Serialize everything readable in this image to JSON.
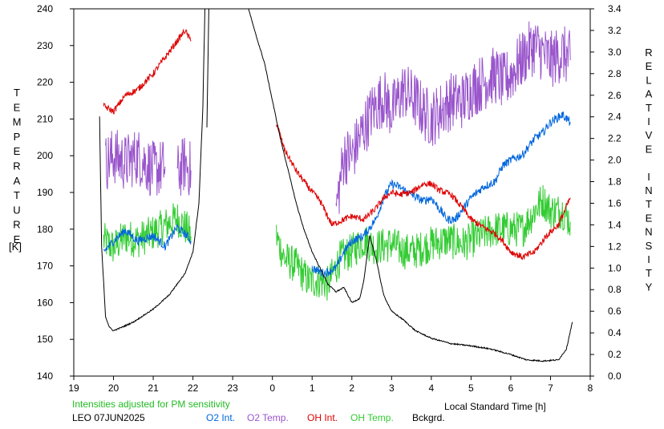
{
  "chart_data": {
    "type": "line",
    "left_axis_label": "TEMPERATURE",
    "left_axis_unit": "[K]",
    "right_axis_label": "RELATIVE INTENSITY",
    "xlabel": "Local Standard Time [h]",
    "xlim": [
      19,
      32
    ],
    "x_tick_values": [
      19,
      20,
      21,
      22,
      23,
      24,
      25,
      26,
      27,
      28,
      29,
      30,
      31,
      32
    ],
    "x_tick_labels": [
      "19",
      "20",
      "21",
      "22",
      "23",
      "0",
      "1",
      "2",
      "3",
      "4",
      "5",
      "6",
      "7",
      "8"
    ],
    "ylim_left": [
      140,
      240
    ],
    "left_ticks": [
      "140",
      "150",
      "160",
      "170",
      "180",
      "190",
      "200",
      "210",
      "220",
      "230",
      "240"
    ],
    "ylim_right": [
      0.0,
      3.4
    ],
    "right_ticks": [
      "0.0",
      "0.2",
      "0.4",
      "0.6",
      "0.8",
      "1.0",
      "1.2",
      "1.4",
      "1.6",
      "1.8",
      "2.0",
      "2.2",
      "2.4",
      "2.6",
      "2.8",
      "3.0",
      "3.2",
      "3.4"
    ],
    "note": "Intensities adjusted for PM sensitivity",
    "station": "LEO 07JUN2025",
    "series": [
      {
        "name": "O2 Int.",
        "axis": "right",
        "color": "#0066dd",
        "noise": 0.04,
        "segments": [
          [
            [
              19.75,
              1.15
            ],
            [
              20.0,
              1.25
            ],
            [
              20.3,
              1.35
            ],
            [
              20.6,
              1.25
            ],
            [
              21.0,
              1.3
            ],
            [
              21.3,
              1.2
            ],
            [
              21.6,
              1.38
            ],
            [
              21.85,
              1.3
            ],
            [
              21.95,
              1.25
            ]
          ],
          [
            [
              25.0,
              1.0
            ],
            [
              25.3,
              0.95
            ],
            [
              25.6,
              1.0
            ],
            [
              25.8,
              1.15
            ],
            [
              26.0,
              1.25
            ],
            [
              26.3,
              1.3
            ],
            [
              26.6,
              1.45
            ],
            [
              26.8,
              1.65
            ],
            [
              27.0,
              1.78
            ],
            [
              27.2,
              1.75
            ],
            [
              27.5,
              1.68
            ],
            [
              27.8,
              1.62
            ],
            [
              28.0,
              1.65
            ],
            [
              28.2,
              1.55
            ],
            [
              28.4,
              1.45
            ],
            [
              28.6,
              1.45
            ],
            [
              28.8,
              1.55
            ],
            [
              29.0,
              1.65
            ],
            [
              29.3,
              1.75
            ],
            [
              29.6,
              1.8
            ],
            [
              29.8,
              1.95
            ],
            [
              30.0,
              2.0
            ],
            [
              30.3,
              2.05
            ],
            [
              30.6,
              2.2
            ],
            [
              30.8,
              2.25
            ],
            [
              31.0,
              2.35
            ],
            [
              31.3,
              2.42
            ],
            [
              31.5,
              2.35
            ]
          ]
        ]
      },
      {
        "name": "O2 Temp.",
        "axis": "left",
        "color": "#9955cc",
        "noise": 8,
        "segments": [
          [
            [
              19.8,
              198
            ],
            [
              20.0,
              200
            ],
            [
              20.3,
              198
            ],
            [
              20.6,
              200
            ],
            [
              21.0,
              196
            ],
            [
              21.3,
              197
            ]
          ],
          [
            [
              21.6,
              195
            ],
            [
              21.8,
              198
            ],
            [
              21.95,
              196
            ]
          ],
          [
            [
              25.6,
              185
            ],
            [
              25.8,
              200
            ],
            [
              26.0,
              200
            ],
            [
              26.2,
              205
            ],
            [
              26.5,
              212
            ],
            [
              26.8,
              216
            ],
            [
              27.0,
              212
            ],
            [
              27.3,
              218
            ],
            [
              27.6,
              215
            ],
            [
              27.8,
              212
            ],
            [
              28.0,
              210
            ],
            [
              28.2,
              212
            ],
            [
              28.5,
              215
            ],
            [
              28.8,
              215
            ],
            [
              29.0,
              218
            ],
            [
              29.3,
              220
            ],
            [
              29.6,
              222
            ],
            [
              29.8,
              220
            ],
            [
              30.0,
              222
            ],
            [
              30.2,
              225
            ],
            [
              30.4,
              228
            ],
            [
              30.6,
              230
            ],
            [
              30.8,
              228
            ],
            [
              31.0,
              226
            ],
            [
              31.3,
              228
            ],
            [
              31.5,
              226
            ]
          ]
        ]
      },
      {
        "name": "OH Int.",
        "axis": "right",
        "color": "#dd0000",
        "noise": 0.03,
        "segments": [
          [
            [
              19.75,
              2.5
            ],
            [
              20.0,
              2.45
            ],
            [
              20.3,
              2.6
            ],
            [
              20.6,
              2.65
            ],
            [
              21.0,
              2.8
            ],
            [
              21.3,
              2.95
            ],
            [
              21.6,
              3.1
            ],
            [
              21.8,
              3.2
            ],
            [
              21.95,
              3.1
            ]
          ],
          [
            [
              24.1,
              2.35
            ],
            [
              24.3,
              2.1
            ],
            [
              24.6,
              1.9
            ],
            [
              24.9,
              1.75
            ],
            [
              25.2,
              1.62
            ],
            [
              25.5,
              1.4
            ],
            [
              25.8,
              1.45
            ],
            [
              26.0,
              1.48
            ],
            [
              26.3,
              1.45
            ],
            [
              26.6,
              1.55
            ],
            [
              26.8,
              1.65
            ],
            [
              27.0,
              1.7
            ],
            [
              27.2,
              1.68
            ],
            [
              27.5,
              1.7
            ],
            [
              27.8,
              1.78
            ],
            [
              28.0,
              1.78
            ],
            [
              28.2,
              1.72
            ],
            [
              28.5,
              1.68
            ],
            [
              28.8,
              1.55
            ],
            [
              29.0,
              1.45
            ],
            [
              29.3,
              1.38
            ],
            [
              29.6,
              1.32
            ],
            [
              29.8,
              1.25
            ],
            [
              30.0,
              1.15
            ],
            [
              30.3,
              1.1
            ],
            [
              30.6,
              1.15
            ],
            [
              30.9,
              1.3
            ],
            [
              31.2,
              1.4
            ],
            [
              31.5,
              1.65
            ]
          ]
        ]
      },
      {
        "name": "OH Temp.",
        "axis": "left",
        "color": "#33cc33",
        "noise": 5,
        "segments": [
          [
            [
              19.75,
              177
            ],
            [
              20.0,
              175
            ],
            [
              20.3,
              178
            ],
            [
              20.6,
              177
            ],
            [
              21.0,
              179
            ],
            [
              21.3,
              181
            ],
            [
              21.6,
              183
            ],
            [
              21.85,
              180
            ],
            [
              21.95,
              178
            ]
          ],
          [
            [
              24.1,
              178
            ],
            [
              24.3,
              172
            ],
            [
              24.6,
              170
            ],
            [
              24.9,
              166
            ],
            [
              25.2,
              166
            ],
            [
              25.4,
              165
            ],
            [
              25.7,
              172
            ],
            [
              26.0,
              174
            ],
            [
              26.3,
              177
            ],
            [
              26.6,
              175
            ],
            [
              27.0,
              176
            ],
            [
              27.3,
              174
            ],
            [
              27.6,
              174
            ],
            [
              28.0,
              176
            ],
            [
              28.4,
              177
            ],
            [
              28.8,
              176
            ],
            [
              29.2,
              178
            ],
            [
              29.6,
              180
            ],
            [
              30.0,
              180
            ],
            [
              30.3,
              180
            ],
            [
              30.6,
              185
            ],
            [
              30.8,
              188
            ],
            [
              31.0,
              185
            ],
            [
              31.3,
              185
            ],
            [
              31.5,
              182
            ]
          ]
        ]
      },
      {
        "name": "Bckgrd.",
        "axis": "right",
        "color": "#000000",
        "noise": 0.006,
        "segments": [
          [
            [
              19.65,
              2.4
            ],
            [
              19.7,
              1.2
            ],
            [
              19.8,
              0.55
            ],
            [
              19.9,
              0.45
            ],
            [
              20.0,
              0.42
            ],
            [
              20.2,
              0.45
            ],
            [
              20.5,
              0.5
            ],
            [
              21.0,
              0.62
            ],
            [
              21.4,
              0.75
            ],
            [
              21.8,
              0.95
            ],
            [
              22.0,
              1.15
            ],
            [
              22.15,
              1.6
            ],
            [
              22.25,
              2.5
            ],
            [
              22.3,
              3.4
            ]
          ],
          [
            [
              22.35,
              2.3
            ],
            [
              22.4,
              3.4
            ]
          ],
          [
            [
              23.4,
              3.4
            ],
            [
              23.55,
              3.2
            ],
            [
              23.8,
              2.9
            ],
            [
              24.0,
              2.55
            ],
            [
              24.2,
              2.2
            ],
            [
              24.4,
              1.9
            ],
            [
              24.6,
              1.6
            ],
            [
              24.8,
              1.35
            ],
            [
              25.0,
              1.15
            ],
            [
              25.2,
              1.0
            ],
            [
              25.4,
              0.85
            ],
            [
              25.6,
              0.78
            ],
            [
              25.8,
              0.82
            ],
            [
              26.0,
              0.68
            ],
            [
              26.2,
              0.72
            ],
            [
              26.3,
              0.88
            ],
            [
              26.45,
              1.3
            ],
            [
              26.6,
              1.1
            ],
            [
              26.8,
              0.75
            ],
            [
              27.0,
              0.6
            ],
            [
              27.3,
              0.52
            ],
            [
              27.6,
              0.42
            ],
            [
              28.0,
              0.35
            ],
            [
              28.5,
              0.3
            ],
            [
              29.0,
              0.28
            ],
            [
              29.5,
              0.25
            ],
            [
              30.0,
              0.2
            ],
            [
              30.4,
              0.15
            ],
            [
              30.8,
              0.14
            ],
            [
              31.2,
              0.15
            ],
            [
              31.4,
              0.25
            ],
            [
              31.55,
              0.5
            ]
          ]
        ]
      }
    ]
  }
}
